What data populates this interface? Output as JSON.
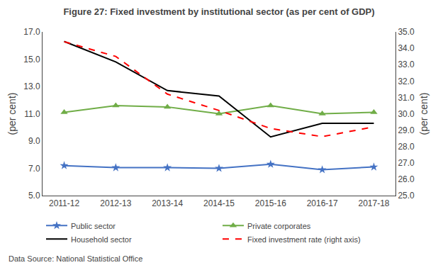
{
  "chart_data": {
    "type": "line",
    "title": "Figure 27: Fixed investment by institutional sector (as per cent of GDP)",
    "ylabel": "(per cent)",
    "y2label": "(per cent)",
    "categories": [
      "2011-12",
      "2012-13",
      "2013-14",
      "2014-15",
      "2015-16",
      "2016-17",
      "2017-18"
    ],
    "series": [
      {
        "name": "Public sector",
        "color": "#4472C4",
        "marker": "star",
        "line_style": "solid",
        "values": [
          7.2,
          7.05,
          7.05,
          7.0,
          7.3,
          6.9,
          7.1
        ]
      },
      {
        "name": "Private corporates",
        "color": "#70AD47",
        "marker": "triangle",
        "line_style": "solid",
        "values": [
          11.1,
          11.6,
          11.5,
          11.0,
          11.6,
          11.0,
          11.1
        ]
      },
      {
        "name": "Household sector",
        "color": "#000000",
        "marker": "none",
        "line_style": "solid",
        "values": [
          16.3,
          14.8,
          12.7,
          12.3,
          9.3,
          10.3,
          10.3
        ]
      },
      {
        "name": "Fixed investment rate (right axis)",
        "color": "#FF0000",
        "marker": "none",
        "line_style": "dash",
        "axis": "y2",
        "values": [
          34.4,
          33.5,
          31.2,
          30.2,
          29.1,
          28.6,
          29.2
        ]
      }
    ],
    "ylim": [
      5.0,
      17.0
    ],
    "yticks": [
      {
        "value": 5,
        "label": "5.0"
      },
      {
        "value": 7,
        "label": "7.0"
      },
      {
        "value": 9,
        "label": "9.0"
      },
      {
        "value": 11,
        "label": "11.0"
      },
      {
        "value": 13,
        "label": "13.0"
      },
      {
        "value": 15,
        "label": "15.0"
      },
      {
        "value": 17,
        "label": "17.0"
      }
    ],
    "y2lim": [
      25.0,
      35.0
    ],
    "y2ticks": [
      {
        "value": 25,
        "label": "25.0"
      },
      {
        "value": 26,
        "label": "26.0"
      },
      {
        "value": 27,
        "label": "27.0"
      },
      {
        "value": 28,
        "label": "28.0"
      },
      {
        "value": 29,
        "label": "29.0"
      },
      {
        "value": 30,
        "label": "30.0"
      },
      {
        "value": 31,
        "label": "31.0"
      },
      {
        "value": 32,
        "label": "32.0"
      },
      {
        "value": 33,
        "label": "33.0"
      },
      {
        "value": 34,
        "label": "34.0"
      },
      {
        "value": 35,
        "label": "35.0"
      }
    ],
    "grid": false,
    "legend": "bottom",
    "annotations": [
      "Data Source: National Statistical Office"
    ]
  }
}
